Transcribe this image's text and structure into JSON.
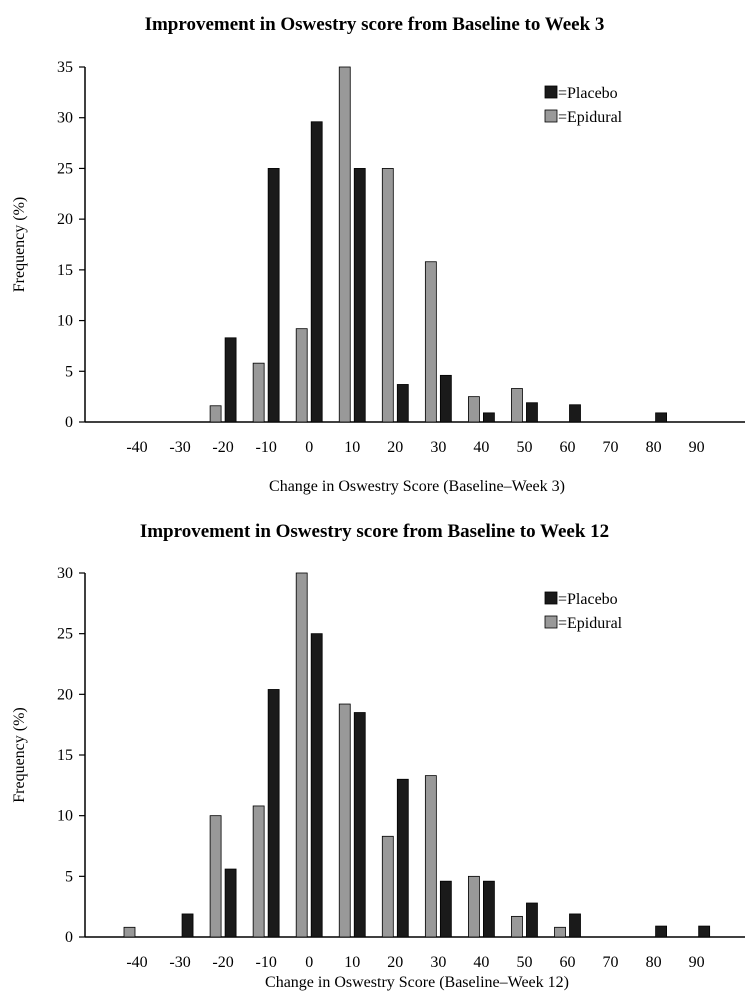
{
  "chart_data": [
    {
      "type": "bar",
      "title": "Improvement in Oswestry score from Baseline to Week 3",
      "xlabel": "Change in Oswestry Score (Baseline–Week 3)",
      "ylabel": "Frequency (%)",
      "ylim": [
        0,
        35
      ],
      "yticks": [
        0,
        5,
        10,
        15,
        20,
        25,
        30,
        35
      ],
      "categories": [
        "-40",
        "-30",
        "-20",
        "-10",
        "0",
        "10",
        "20",
        "30",
        "40",
        "50",
        "60",
        "70",
        "80",
        "90"
      ],
      "series": [
        {
          "name": "=Epidural",
          "color": "#999999",
          "values": [
            0,
            0,
            1.6,
            5.8,
            9.2,
            35,
            25,
            15.8,
            2.5,
            3.3,
            0,
            0,
            0,
            0
          ]
        },
        {
          "name": "=Placebo",
          "color": "#1a1a1a",
          "values": [
            0,
            0,
            8.3,
            25,
            29.6,
            25,
            3.7,
            4.6,
            0.9,
            1.9,
            1.7,
            0,
            0.9,
            0
          ]
        }
      ],
      "legend": "top-right",
      "grid": false
    },
    {
      "type": "bar",
      "title": "Improvement in Oswestry score from Baseline to Week 12",
      "xlabel": "Change in Oswestry Score (Baseline–Week 12)",
      "ylabel": "Frequency (%)",
      "ylim": [
        0,
        30
      ],
      "yticks": [
        0,
        5,
        10,
        15,
        20,
        25,
        30
      ],
      "categories": [
        "-40",
        "-30",
        "-20",
        "-10",
        "0",
        "10",
        "20",
        "30",
        "40",
        "50",
        "60",
        "70",
        "80",
        "90"
      ],
      "series": [
        {
          "name": "=Epidural",
          "color": "#999999",
          "values": [
            0.8,
            0,
            10,
            10.8,
            30,
            19.2,
            8.3,
            13.3,
            5,
            1.7,
            0.8,
            0,
            0,
            0
          ]
        },
        {
          "name": "=Placebo",
          "color": "#1a1a1a",
          "values": [
            0,
            1.9,
            5.6,
            20.4,
            25,
            18.5,
            13,
            4.6,
            4.6,
            2.8,
            1.9,
            0,
            0.9,
            0.9
          ]
        }
      ],
      "legend": "top-right",
      "grid": false
    }
  ]
}
